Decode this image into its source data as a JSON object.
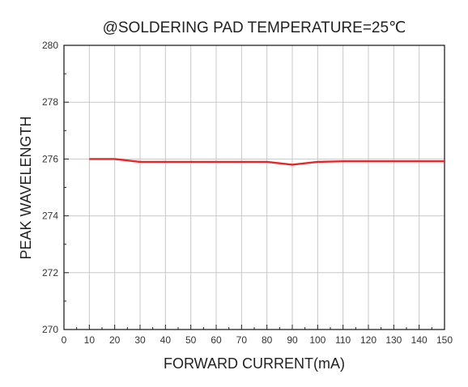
{
  "chart_data": {
    "type": "line",
    "title": "@SOLDERING PAD TEMPERATURE=25℃",
    "xlabel": "FORWARD CURRENT(mA)",
    "ylabel": "PEAK WAVELENGTH",
    "xlim": [
      0,
      150
    ],
    "ylim": [
      270,
      280
    ],
    "xticks": [
      "0",
      "10",
      "20",
      "30",
      "40",
      "50",
      "60",
      "70",
      "80",
      "90",
      "100",
      "110",
      "120",
      "130",
      "140",
      "150"
    ],
    "yticks": [
      "270",
      "272",
      "274",
      "276",
      "278",
      "280"
    ],
    "grid": true,
    "series": [
      {
        "color": "#e8262a",
        "x": [
          10,
          20,
          30,
          40,
          50,
          60,
          70,
          80,
          90,
          100,
          110,
          120,
          130,
          140,
          150
        ],
        "y": [
          276.0,
          276.0,
          275.9,
          275.9,
          275.9,
          275.9,
          275.9,
          275.9,
          275.8,
          275.9,
          275.92,
          275.92,
          275.92,
          275.92,
          275.92
        ]
      }
    ]
  }
}
